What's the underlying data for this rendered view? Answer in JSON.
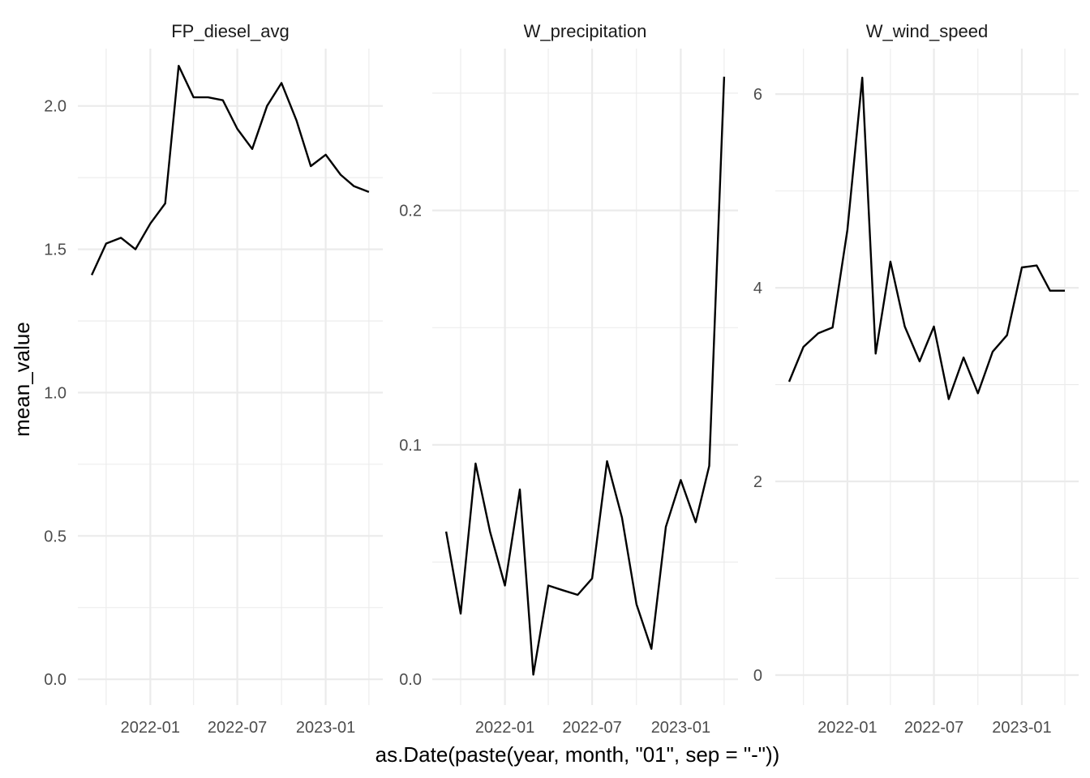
{
  "colors": {
    "background": "#ffffff",
    "grid": "#ebebeb",
    "line": "#000000",
    "tick_text": "#4d4d4d"
  },
  "chart_data": {
    "type": "line",
    "layout": "facets",
    "xlabel": "as.Date(paste(year, month, \"01\", sep = \"-\"))",
    "ylabel": "mean_value",
    "grid": true,
    "x_ticks": [
      "2022-01",
      "2022-07",
      "2023-01"
    ],
    "x": [
      "2021-09-01",
      "2021-10-01",
      "2021-11-01",
      "2021-12-01",
      "2022-01-01",
      "2022-02-01",
      "2022-03-01",
      "2022-04-01",
      "2022-05-01",
      "2022-06-01",
      "2022-07-01",
      "2022-08-01",
      "2022-09-01",
      "2022-10-01",
      "2022-11-01",
      "2022-12-01",
      "2023-01-01",
      "2023-02-01",
      "2023-03-01",
      "2023-04-01"
    ],
    "panels": [
      {
        "title": "FP_diesel_avg",
        "ylim": [
          -0.09,
          2.2
        ],
        "yticks": [
          "0.0",
          "0.5",
          "1.0",
          "1.5",
          "2.0"
        ],
        "values": [
          1.41,
          1.52,
          1.54,
          1.5,
          1.59,
          1.66,
          2.14,
          2.03,
          2.03,
          2.02,
          1.92,
          1.85,
          2.0,
          2.08,
          1.95,
          1.79,
          1.83,
          1.76,
          1.72,
          1.7
        ]
      },
      {
        "title": "W_precipitation",
        "ylim": [
          -0.011,
          0.269
        ],
        "yticks": [
          "0.0",
          "0.1",
          "0.2"
        ],
        "values": [
          0.063,
          0.028,
          0.092,
          0.063,
          0.04,
          0.081,
          0.002,
          0.04,
          0.038,
          0.036,
          0.043,
          0.093,
          0.069,
          0.032,
          0.013,
          0.065,
          0.085,
          0.067,
          0.091,
          0.257
        ]
      },
      {
        "title": "W_wind_speed",
        "ylim": [
          -0.31,
          6.47
        ],
        "yticks": [
          "0",
          "2",
          "4",
          "6"
        ],
        "values": [
          3.03,
          3.39,
          3.53,
          3.59,
          4.6,
          6.17,
          3.32,
          4.27,
          3.6,
          3.24,
          3.6,
          2.85,
          3.28,
          2.91,
          3.34,
          3.51,
          4.21,
          4.23,
          3.97,
          3.97
        ]
      }
    ]
  }
}
